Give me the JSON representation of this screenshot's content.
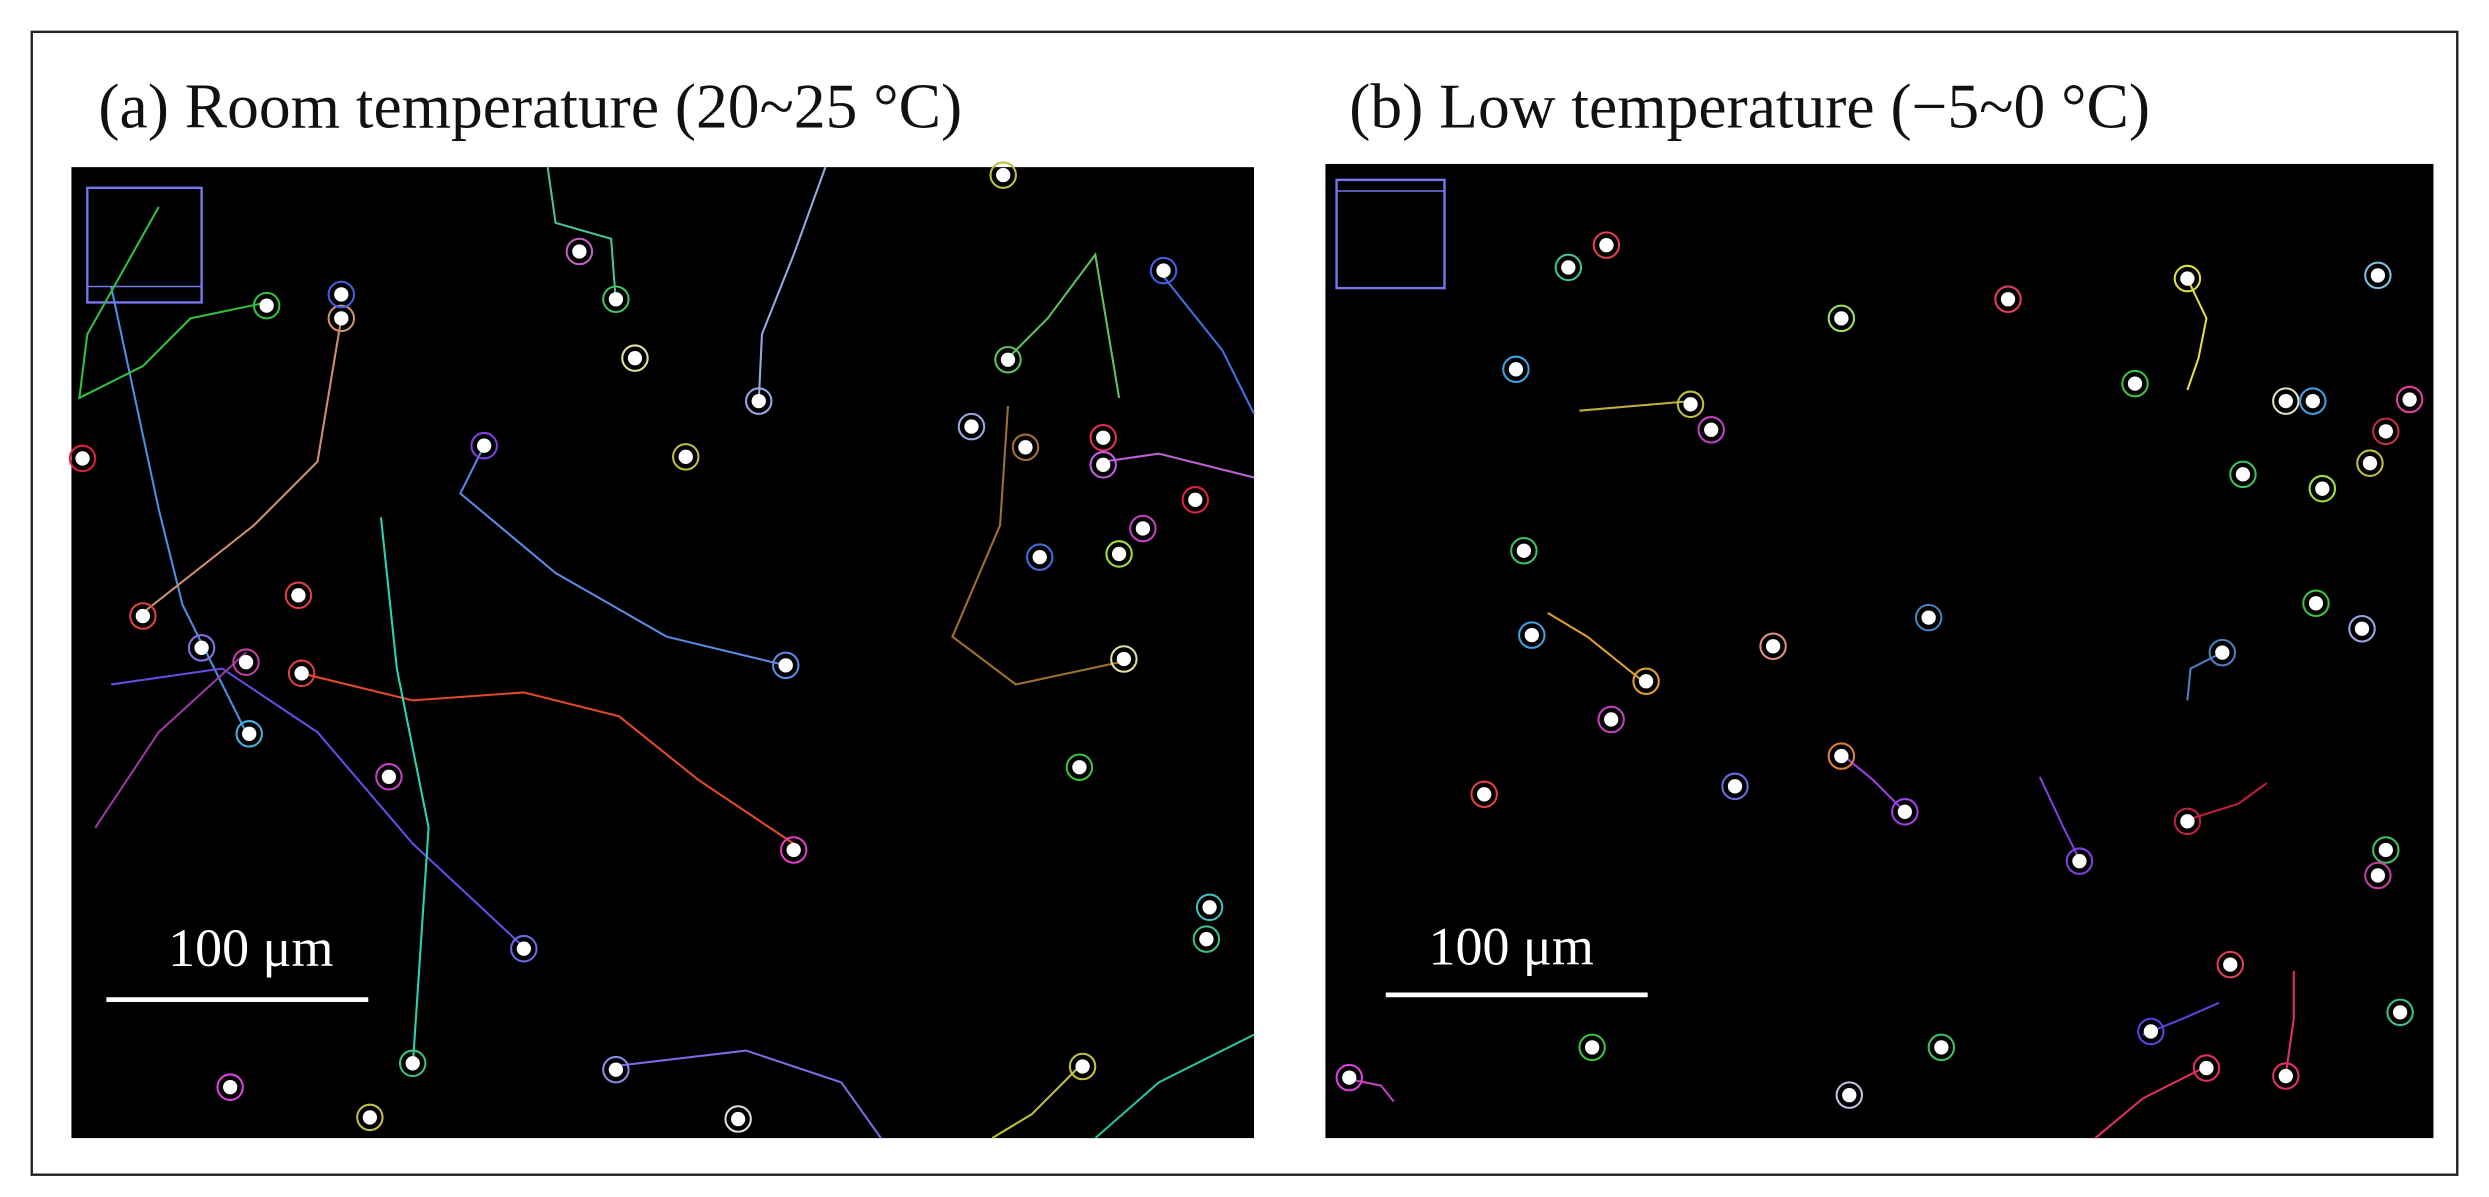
{
  "panels": [
    {
      "title": "(a) Room temperature (20~25 °C)",
      "scale_bar_label": "100 μm"
    },
    {
      "title": "(b) Low temperature (−5~0 °C)",
      "scale_bar_label": "100 μm"
    }
  ]
}
